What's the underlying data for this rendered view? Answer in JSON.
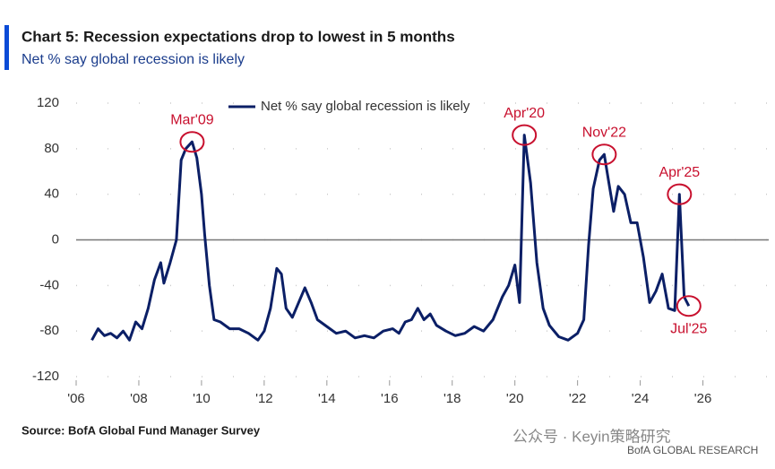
{
  "chart_data": {
    "type": "line",
    "title": "Chart 5: Recession expectations drop to lowest in 5 months",
    "subtitle": "Net % say global recession is likely",
    "source": "Source: BofA Global Fund Manager Survey",
    "watermark": "公众号 · Keyin策略研究",
    "footer_brand": "BofA GLOBAL RESEARCH",
    "xlim": [
      2006,
      2028.1
    ],
    "xticks": [
      {
        "value": 2006,
        "label": "'06"
      },
      {
        "value": 2008,
        "label": "'08"
      },
      {
        "value": 2010,
        "label": "'10"
      },
      {
        "value": 2012,
        "label": "'12"
      },
      {
        "value": 2014,
        "label": "'14"
      },
      {
        "value": 2016,
        "label": "'16"
      },
      {
        "value": 2018,
        "label": "'18"
      },
      {
        "value": 2020,
        "label": "'20"
      },
      {
        "value": 2022,
        "label": "'22"
      },
      {
        "value": 2024,
        "label": "'24"
      },
      {
        "value": 2026,
        "label": "'26"
      }
    ],
    "ylim": [
      -120,
      120
    ],
    "yticks": [
      -120,
      -80,
      -40,
      0,
      40,
      80,
      120
    ],
    "legend": "top-center",
    "series": [
      {
        "name": "Net % say global recession is likely",
        "color": "#0b1f66",
        "x": [
          2006.5,
          2006.7,
          2006.9,
          2007.1,
          2007.3,
          2007.5,
          2007.7,
          2007.9,
          2008.1,
          2008.3,
          2008.5,
          2008.7,
          2008.8,
          2009.0,
          2009.2,
          2009.35,
          2009.5,
          2009.7,
          2009.85,
          2010.0,
          2010.1,
          2010.25,
          2010.4,
          2010.6,
          2010.9,
          2011.2,
          2011.5,
          2011.8,
          2012.0,
          2012.2,
          2012.4,
          2012.55,
          2012.7,
          2012.9,
          2013.1,
          2013.3,
          2013.5,
          2013.7,
          2014.0,
          2014.3,
          2014.6,
          2014.9,
          2015.2,
          2015.5,
          2015.8,
          2016.1,
          2016.3,
          2016.5,
          2016.7,
          2016.9,
          2017.1,
          2017.3,
          2017.5,
          2017.8,
          2018.1,
          2018.4,
          2018.7,
          2019.0,
          2019.3,
          2019.6,
          2019.8,
          2020.0,
          2020.15,
          2020.3,
          2020.5,
          2020.7,
          2020.9,
          2021.1,
          2021.4,
          2021.7,
          2022.0,
          2022.2,
          2022.35,
          2022.5,
          2022.7,
          2022.85,
          2023.0,
          2023.15,
          2023.3,
          2023.5,
          2023.7,
          2023.9,
          2024.1,
          2024.3,
          2024.5,
          2024.7,
          2024.9,
          2025.1,
          2025.25,
          2025.4,
          2025.55
        ],
        "values": [
          -88,
          -78,
          -84,
          -82,
          -86,
          -80,
          -88,
          -72,
          -78,
          -60,
          -35,
          -20,
          -38,
          -20,
          0,
          70,
          80,
          86,
          72,
          40,
          5,
          -40,
          -70,
          -72,
          -78,
          -78,
          -82,
          -88,
          -80,
          -60,
          -25,
          -30,
          -60,
          -68,
          -55,
          -42,
          -55,
          -70,
          -76,
          -82,
          -80,
          -86,
          -84,
          -86,
          -80,
          -78,
          -82,
          -72,
          -70,
          -60,
          -70,
          -65,
          -75,
          -80,
          -84,
          -82,
          -76,
          -80,
          -70,
          -50,
          -40,
          -22,
          -55,
          92,
          50,
          -20,
          -60,
          -75,
          -85,
          -88,
          -82,
          -70,
          -5,
          45,
          70,
          75,
          50,
          25,
          47,
          40,
          15,
          15,
          -15,
          -55,
          -45,
          -30,
          -60,
          -62,
          40,
          -50,
          -58
        ]
      }
    ],
    "annotations": [
      {
        "text": "Mar'09",
        "x": 2009.7,
        "y": 86,
        "label_position": "above"
      },
      {
        "text": "Apr'20",
        "x": 2020.3,
        "y": 92,
        "label_position": "above"
      },
      {
        "text": "Nov'22",
        "x": 2022.85,
        "y": 75,
        "label_position": "above"
      },
      {
        "text": "Apr'25",
        "x": 2025.25,
        "y": 40,
        "label_position": "above"
      },
      {
        "text": "Jul'25",
        "x": 2025.55,
        "y": -58,
        "label_position": "below"
      }
    ]
  }
}
